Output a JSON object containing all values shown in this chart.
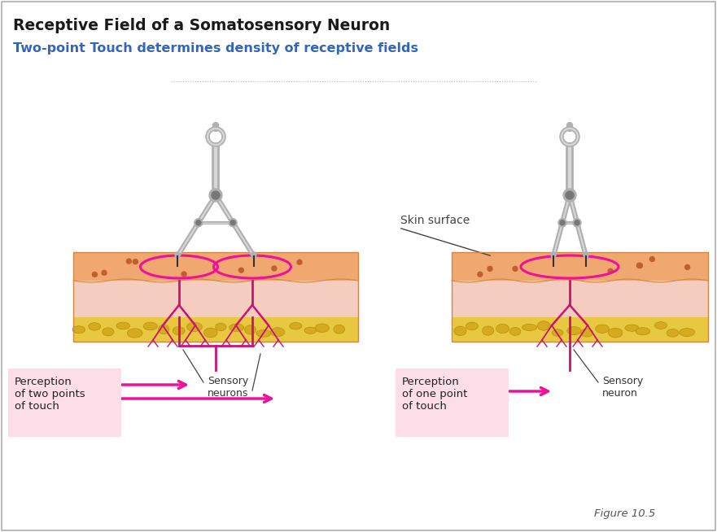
{
  "title_main": "Receptive Field of a Somatosensory Neuron",
  "title_sub": "Two-point Touch determines density of receptive fields",
  "title_main_color": "#1a1a1a",
  "title_sub_color": "#3366bb",
  "figure_label": "Figure 10.5",
  "background_color": "#ffffff",
  "border_color": "#bbbbbb",
  "skin_orange_color": "#f0a870",
  "skin_pink_color": "#f5ccc0",
  "skin_fat_color": "#e8c840",
  "skin_surface_label": "Skin surface",
  "label_left_title": "Perception\nof two points\nof touch",
  "label_right_title": "Perception\nof one point\nof touch",
  "sensory_neurons_label": "Sensory\nneurons",
  "sensory_neuron_label": "Sensory\nneuron",
  "arrow_color": "#ee1199",
  "label_box_color": "#fcdde8",
  "nerve_color": "#cc1177",
  "circle_color": "#ee1199",
  "compasses_color": "#b0b0b0",
  "compasses_dark": "#777777",
  "compasses_light": "#d8d8d8",
  "tip_color": "#333333",
  "annotation_color": "#444444",
  "dotted_line_color": "#bbbbbb"
}
